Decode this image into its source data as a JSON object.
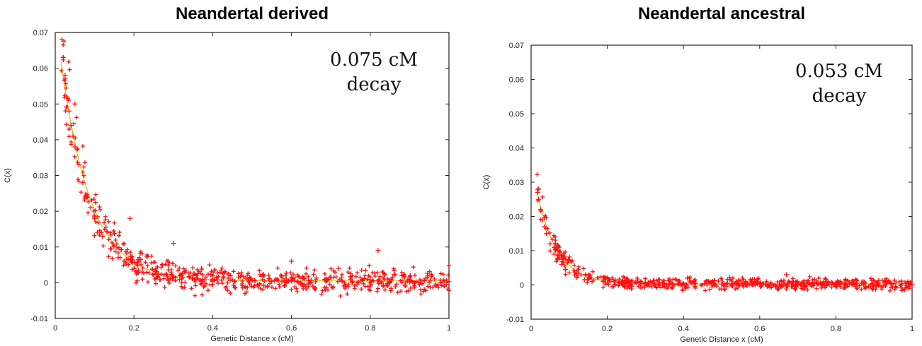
{
  "chart_data": [
    {
      "type": "scatter",
      "title": "Neandertal derived",
      "xlabel": "Genetic Distance x (cM)",
      "ylabel": "C(x)",
      "xlim": [
        0,
        1
      ],
      "ylim": [
        -0.01,
        0.07
      ],
      "x_ticks": [
        "0",
        "0.2",
        "0.4",
        "0.6",
        "0.8",
        "1"
      ],
      "y_ticks": [
        "-0.01",
        "0",
        "0.01",
        "0.02",
        "0.03",
        "0.04",
        "0.05",
        "0.06",
        "0.07"
      ],
      "annotation": [
        "0.075 cM",
        "decay"
      ],
      "model": {
        "amplitude": 0.075,
        "decay_cM": 0.075,
        "baseline": 0.0005
      },
      "series": [
        {
          "values_x": [
            0.017,
            0.02,
            0.025,
            0.03,
            0.035,
            0.04,
            0.045,
            0.05,
            0.06,
            0.07,
            0.08,
            0.09,
            0.1,
            0.12,
            0.14,
            0.16,
            0.18,
            0.2,
            0.22,
            0.25,
            0.3,
            0.35,
            0.4,
            0.45,
            0.5,
            0.55,
            0.6,
            0.65,
            0.7,
            0.75,
            0.8,
            0.85,
            0.9,
            0.95,
            1.0
          ],
          "values_y": [
            0.068,
            0.063,
            0.057,
            0.052,
            0.048,
            0.044,
            0.041,
            0.038,
            0.033,
            0.028,
            0.024,
            0.021,
            0.018,
            0.013,
            0.0095,
            0.007,
            0.0052,
            0.004,
            0.003,
            0.0022,
            0.0015,
            0.0012,
            0.001,
            0.0008,
            0.0006,
            0.0004,
            0.0005,
            0.0007,
            0.0015,
            0.001,
            0.0008,
            0.0003,
            0.0002,
            0.0001,
            0.0003
          ],
          "outliers": [
            [
              0.19,
              0.018
            ],
            [
              0.3,
              0.011
            ],
            [
              0.82,
              0.009
            ],
            [
              0.05,
              0.05
            ],
            [
              0.025,
              0.058
            ],
            [
              0.6,
              0.006
            ],
            [
              0.72,
              0.004
            ]
          ]
        }
      ]
    },
    {
      "type": "scatter",
      "title": "Neandertal ancestral",
      "xlabel": "Genetic Distance x (cM)",
      "ylabel": "C(x)",
      "xlim": [
        0,
        1
      ],
      "ylim": [
        -0.01,
        0.07
      ],
      "x_ticks": [
        "0",
        "0.2",
        "0.4",
        "0.6",
        "0.8",
        "1"
      ],
      "y_ticks": [
        "-0.01",
        "0",
        "0.01",
        "0.02",
        "0.03",
        "0.04",
        "0.05",
        "0.06",
        "0.07"
      ],
      "annotation": [
        "0.053 cM",
        "decay"
      ],
      "model": {
        "amplitude": 0.036,
        "decay_cM": 0.053,
        "baseline": 0.0003
      },
      "series": [
        {
          "values_x": [
            0.017,
            0.02,
            0.025,
            0.03,
            0.035,
            0.04,
            0.05,
            0.06,
            0.07,
            0.08,
            0.09,
            0.1,
            0.12,
            0.14,
            0.16,
            0.2,
            0.25,
            0.3,
            0.4,
            0.5,
            0.6,
            0.7,
            0.8,
            0.9,
            1.0
          ],
          "values_y": [
            0.027,
            0.025,
            0.022,
            0.019,
            0.017,
            0.015,
            0.012,
            0.009,
            0.0075,
            0.006,
            0.0045,
            0.0035,
            0.0022,
            0.0015,
            0.001,
            0.0006,
            0.0005,
            0.0004,
            0.0003,
            0.0002,
            0.0002,
            0.0002,
            0.0001,
            0.0001,
            0.0001
          ],
          "outliers": [
            [
              0.02,
              0.028
            ],
            [
              0.67,
              0.003
            ],
            [
              0.41,
              0.002
            ],
            [
              0.15,
              0.003
            ]
          ]
        }
      ]
    }
  ]
}
